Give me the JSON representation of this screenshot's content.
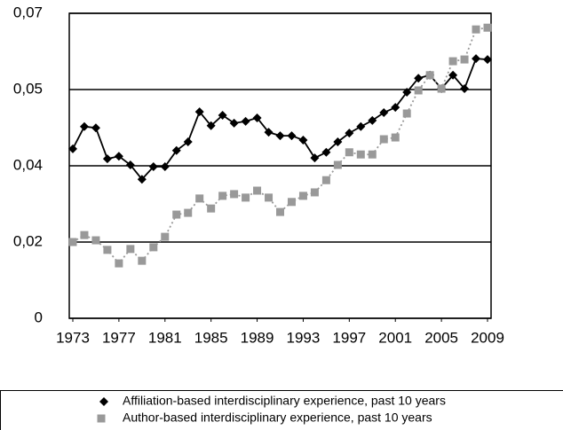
{
  "chart_data": {
    "type": "line",
    "x": [
      1973,
      1974,
      1975,
      1976,
      1977,
      1978,
      1979,
      1980,
      1981,
      1982,
      1983,
      1984,
      1985,
      1986,
      1987,
      1988,
      1989,
      1990,
      1991,
      1992,
      1993,
      1994,
      1995,
      1996,
      1997,
      1998,
      1999,
      2000,
      2001,
      2002,
      2003,
      2004,
      2005,
      2006,
      2007,
      2008,
      2009
    ],
    "series": [
      {
        "name": "Affiliation-based interdisciplinary experience, past 10 years",
        "color": "#000000",
        "marker": "diamond",
        "line_style": "solid",
        "values": [
          0.0389,
          0.044,
          0.0437,
          0.0366,
          0.0372,
          0.0352,
          0.0319,
          0.0348,
          0.0348,
          0.0385,
          0.0405,
          0.0474,
          0.0442,
          0.0466,
          0.0448,
          0.0452,
          0.046,
          0.0427,
          0.0419,
          0.0419,
          0.0409,
          0.0368,
          0.0381,
          0.0405,
          0.0425,
          0.044,
          0.0454,
          0.0472,
          0.0484,
          0.0519,
          0.0551,
          0.0558,
          0.0527,
          0.0558,
          0.0527,
          0.0596,
          0.0594
        ]
      },
      {
        "name": "Author-based interdisciplinary experience, past 10 years",
        "color": "#999999",
        "marker": "square",
        "line_style": "dotted",
        "values": [
          0.0175,
          0.0191,
          0.0179,
          0.0157,
          0.0126,
          0.0159,
          0.0132,
          0.0163,
          0.0187,
          0.0238,
          0.0242,
          0.0275,
          0.0252,
          0.0281,
          0.0285,
          0.0277,
          0.0293,
          0.0277,
          0.0244,
          0.0267,
          0.0281,
          0.0289,
          0.0317,
          0.0352,
          0.0381,
          0.0376,
          0.0376,
          0.0411,
          0.0415,
          0.047,
          0.0523,
          0.0558,
          0.0527,
          0.059,
          0.0594,
          0.0663,
          0.0667
        ]
      }
    ],
    "xlim": [
      1973,
      2009
    ],
    "xticks": [
      1973,
      1977,
      1981,
      1985,
      1989,
      1993,
      1997,
      2001,
      2005,
      2009
    ],
    "ylim": [
      0,
      0.07
    ],
    "yticks": [
      0,
      {
        "value": 0.0175,
        "label": "0,02"
      },
      {
        "value": 0.035,
        "label": "0,04"
      },
      {
        "value": 0.0525,
        "label": "0,05"
      },
      {
        "value": 0.07,
        "label": "0,07"
      }
    ],
    "grid": true,
    "legend": "bottom"
  }
}
